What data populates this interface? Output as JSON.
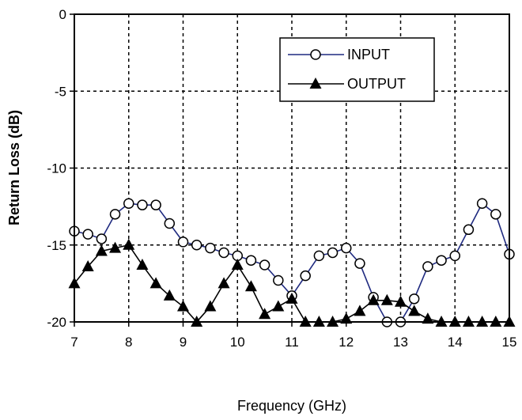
{
  "chart_data": {
    "type": "line",
    "title": "",
    "xlabel": "Frequency (GHz)",
    "ylabel": "Return Loss (dB)",
    "xlim": [
      7,
      15
    ],
    "ylim": [
      -20,
      0
    ],
    "xticks": [
      "7",
      "8",
      "9",
      "10",
      "11",
      "12",
      "13",
      "14",
      "15"
    ],
    "yticks": [
      "0",
      "-5",
      "-10",
      "-15",
      "-20"
    ],
    "grid": true,
    "legend_position": "top-right",
    "series": [
      {
        "name": "INPUT",
        "color": "#1f2a80",
        "marker": "circle-open",
        "x": [
          7,
          7.25,
          7.5,
          7.75,
          8,
          8.25,
          8.5,
          8.75,
          9,
          9.25,
          9.5,
          9.75,
          10,
          10.25,
          10.5,
          10.75,
          11,
          11.25,
          11.5,
          11.75,
          12,
          12.25,
          12.5,
          12.75,
          13,
          13.25,
          13.5,
          13.75,
          14,
          14.25,
          14.5,
          14.75,
          15
        ],
        "y": [
          -14.1,
          -14.3,
          -14.6,
          -13.0,
          -12.3,
          -12.4,
          -12.4,
          -13.6,
          -14.8,
          -15.0,
          -15.2,
          -15.5,
          -15.7,
          -16.0,
          -16.3,
          -17.3,
          -18.3,
          -17.0,
          -15.7,
          -15.5,
          -15.2,
          -16.2,
          -18.4,
          -20.0,
          -20.0,
          -18.5,
          -16.4,
          -16.0,
          -15.7,
          -14.0,
          -12.3,
          -13.0,
          -15.6
        ]
      },
      {
        "name": "OUTPUT",
        "color": "#000000",
        "marker": "triangle-filled",
        "x": [
          7,
          7.25,
          7.5,
          7.75,
          8,
          8.25,
          8.5,
          8.75,
          9,
          9.25,
          9.5,
          9.75,
          10,
          10.25,
          10.5,
          10.75,
          11,
          11.25,
          11.5,
          11.75,
          12,
          12.25,
          12.5,
          12.75,
          13,
          13.25,
          13.5,
          13.75,
          14,
          14.25,
          14.5,
          14.75,
          15
        ],
        "y": [
          -17.5,
          -16.4,
          -15.4,
          -15.2,
          -15.0,
          -16.3,
          -17.5,
          -18.3,
          -19.0,
          -20.0,
          -19.0,
          -17.5,
          -16.3,
          -17.7,
          -19.5,
          -19.0,
          -18.5,
          -20.0,
          -20.0,
          -20.0,
          -19.8,
          -19.3,
          -18.6,
          -18.6,
          -18.7,
          -19.3,
          -19.8,
          -20.0,
          -20.0,
          -20.0,
          -20.0,
          -20.0,
          -20.0
        ]
      }
    ]
  }
}
